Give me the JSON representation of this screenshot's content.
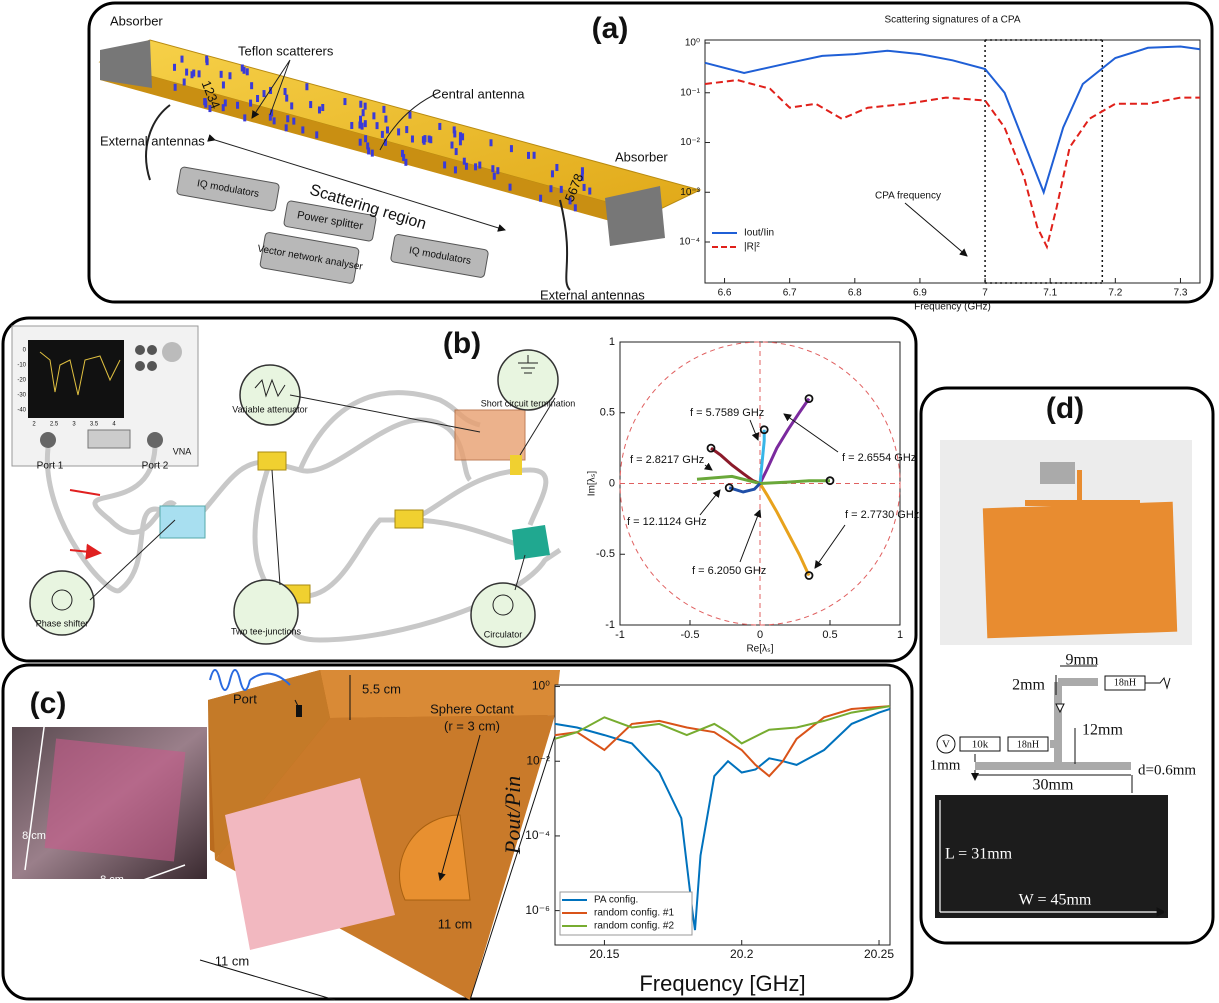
{
  "panels": {
    "a": {
      "label": "(a)",
      "absorber_left": "Absorber",
      "teflon": "Teflon scatterers",
      "antennas_left": "1234",
      "central": "Central antenna",
      "external_left": "External antennas",
      "scattering": "Scattering region",
      "iq_left": "IQ modulators",
      "splitter": "Power splitter",
      "vna": "Vector network analyser",
      "iq_right": "IQ modulators",
      "antennas_right": "5678",
      "absorber_right": "Absorber",
      "external_right": "External antennas"
    },
    "b": {
      "label": "(b)",
      "vna": "VNA",
      "port1": "Port 1",
      "port2": "Port 2",
      "attenuator": "Variable attenuator",
      "short": "Short circuit termination",
      "phase": "Phase shifter",
      "tees": "Two tee-junctions",
      "circulator": "Circulator",
      "screen_y": [
        "0",
        "-10",
        "-20",
        "-30",
        "-40"
      ],
      "screen_x": [
        "2",
        "2.5",
        "3",
        "3.5",
        "4"
      ]
    },
    "c": {
      "label": "(c)",
      "photo_w": "8 cm",
      "photo_h": "8 cm",
      "port": "Port",
      "height": "5.5 cm",
      "sphere": "Sphere Octant",
      "radius": "(r = 3 cm)",
      "side_left": "11 cm",
      "side_right": "11 cm"
    },
    "d": {
      "label": "(d)",
      "w9": "9mm",
      "h2": "2mm",
      "ind_top": "18nH",
      "source": "V",
      "res": "10k",
      "ind_left": "18nH",
      "h12": "12mm",
      "h1": "1mm",
      "w30": "30mm",
      "gap": "d=0.6mm",
      "length": "L = 31mm",
      "width": "W = 45mm"
    }
  },
  "chart_data": [
    {
      "type": "line",
      "title": "Scattering signatures of a CPA",
      "x_label": "Frequency (GHz)",
      "log_y": true,
      "legend": "lower left",
      "xlim": [
        6.57,
        7.33
      ],
      "ylim": [
        1.5e-05,
        1.15
      ],
      "xticks": [
        6.6,
        6.7,
        6.8,
        6.9,
        7.0,
        7.1,
        7.2,
        7.3
      ],
      "yticks": [
        {
          "value": 1,
          "label": "10⁰"
        },
        {
          "value": 0.1,
          "label": "10⁻¹"
        },
        {
          "value": 0.01,
          "label": "10⁻²"
        },
        {
          "value": 0.001,
          "label": "10⁻³"
        },
        {
          "value": 0.0001,
          "label": "10⁻⁴"
        }
      ],
      "vlines": [
        7.0,
        7.18
      ],
      "annotations": [
        "CPA frequency"
      ],
      "series": [
        {
          "name": "Iout/Iin",
          "color": "#1f5fd6",
          "dashed": false,
          "x": [
            6.57,
            6.63,
            6.7,
            6.75,
            6.8,
            6.85,
            6.9,
            6.95,
            7.0,
            7.03,
            7.06,
            7.09,
            7.12,
            7.15,
            7.2,
            7.25,
            7.3,
            7.33
          ],
          "values": [
            0.4,
            0.25,
            0.4,
            0.55,
            0.6,
            0.7,
            0.6,
            0.45,
            0.3,
            0.1,
            0.01,
            0.001,
            0.02,
            0.15,
            0.5,
            0.8,
            0.85,
            0.75
          ]
        },
        {
          "name": "|R|²",
          "color": "#e0201a",
          "dashed": true,
          "x": [
            6.57,
            6.62,
            6.67,
            6.7,
            6.74,
            6.78,
            6.82,
            6.88,
            6.94,
            7.0,
            7.03,
            7.06,
            7.08,
            7.095,
            7.11,
            7.13,
            7.16,
            7.2,
            7.25,
            7.3,
            7.33
          ],
          "values": [
            0.15,
            0.18,
            0.12,
            0.05,
            0.06,
            0.03,
            0.05,
            0.06,
            0.08,
            0.07,
            0.02,
            0.002,
            0.0002,
            8e-05,
            0.0005,
            0.008,
            0.03,
            0.06,
            0.06,
            0.08,
            0.08
          ]
        }
      ]
    },
    {
      "type": "line",
      "x_label": "Re[λₛ]",
      "y_label": "Im[λₛ]",
      "log_y": false,
      "unit_circle": true,
      "xlim": [
        -1,
        1
      ],
      "ylim": [
        -1,
        1
      ],
      "xticks": [
        -1,
        -0.5,
        0,
        0.5,
        1
      ],
      "yticks": [
        -1,
        -0.5,
        0,
        0.5,
        1
      ],
      "annotations": [
        "f = 5.7589 GHz",
        "f = 2.6554 GHz",
        "f = 2.8217 GHz",
        "f = 12.1124 GHz",
        "f = 2.7730 GHz",
        "f = 6.2050 GHz"
      ],
      "series": [
        {
          "color": "#7b2a9e",
          "x": [
            0,
            0.05,
            0.12,
            0.2,
            0.28,
            0.35
          ],
          "values": [
            0,
            0.1,
            0.25,
            0.38,
            0.5,
            0.6
          ]
        },
        {
          "color": "#38b6e8",
          "x": [
            0,
            0.01,
            0.02,
            0.03,
            0.03
          ],
          "values": [
            0,
            0.1,
            0.2,
            0.3,
            0.38
          ]
        },
        {
          "color": "#8b1a2a",
          "x": [
            0,
            -0.05,
            -0.12,
            -0.2,
            -0.28,
            -0.35
          ],
          "values": [
            0,
            0.02,
            0.07,
            0.13,
            0.2,
            0.25
          ]
        },
        {
          "color": "#e8a21c",
          "x": [
            0,
            0.05,
            0.12,
            0.2,
            0.28,
            0.35
          ],
          "values": [
            0,
            -0.08,
            -0.2,
            -0.35,
            -0.5,
            -0.65
          ]
        },
        {
          "color": "#6aa83a",
          "x": [
            -0.45,
            -0.2,
            0,
            0.2,
            0.35,
            0.5
          ],
          "values": [
            0.03,
            0.05,
            0,
            0.01,
            0.02,
            0.02
          ]
        },
        {
          "color": "#1f4fa8",
          "x": [
            0,
            -0.04,
            -0.12,
            -0.22
          ],
          "values": [
            0,
            -0.04,
            -0.06,
            -0.03
          ]
        }
      ]
    },
    {
      "type": "line",
      "x_label": "Frequency [GHz]",
      "y_label": "Pout/Pin",
      "log_y": true,
      "legend": "lower left",
      "xlim": [
        20.132,
        20.254
      ],
      "ylim": [
        1.2e-07,
        1.1
      ],
      "xticks": [
        20.15,
        20.2,
        20.25
      ],
      "yticks": [
        {
          "value": 1,
          "label": "10⁰"
        },
        {
          "value": 0.01,
          "label": "10⁻²"
        },
        {
          "value": 0.0001,
          "label": "10⁻⁴"
        },
        {
          "value": 1e-06,
          "label": "10⁻⁶"
        }
      ],
      "series": [
        {
          "name": "PA config.",
          "color": "#0072bd",
          "x": [
            20.132,
            20.14,
            20.15,
            20.16,
            20.17,
            20.178,
            20.182,
            20.183,
            20.185,
            20.19,
            20.195,
            20.2,
            20.205,
            20.21,
            20.215,
            20.22,
            20.23,
            20.24,
            20.25,
            20.254
          ],
          "values": [
            0.1,
            0.08,
            0.05,
            0.03,
            0.005,
            0.0003,
            1e-06,
            3e-07,
            3e-05,
            0.004,
            0.01,
            0.005,
            0.006,
            0.012,
            0.01,
            0.008,
            0.02,
            0.1,
            0.2,
            0.25
          ]
        },
        {
          "name": "random config. #1",
          "color": "#d95319",
          "x": [
            20.132,
            20.14,
            20.15,
            20.16,
            20.17,
            20.18,
            20.19,
            20.2,
            20.205,
            20.21,
            20.215,
            20.22,
            20.23,
            20.24,
            20.254
          ],
          "values": [
            0.05,
            0.06,
            0.02,
            0.1,
            0.12,
            0.08,
            0.06,
            0.02,
            0.008,
            0.004,
            0.01,
            0.04,
            0.15,
            0.25,
            0.3
          ]
        },
        {
          "name": "random config. #2",
          "color": "#77ac30",
          "x": [
            20.132,
            20.14,
            20.15,
            20.16,
            20.17,
            20.18,
            20.19,
            20.195,
            20.2,
            20.21,
            20.22,
            20.23,
            20.24,
            20.254
          ],
          "values": [
            0.04,
            0.06,
            0.15,
            0.08,
            0.1,
            0.05,
            0.1,
            0.06,
            0.03,
            0.07,
            0.08,
            0.12,
            0.2,
            0.3
          ]
        }
      ]
    }
  ]
}
